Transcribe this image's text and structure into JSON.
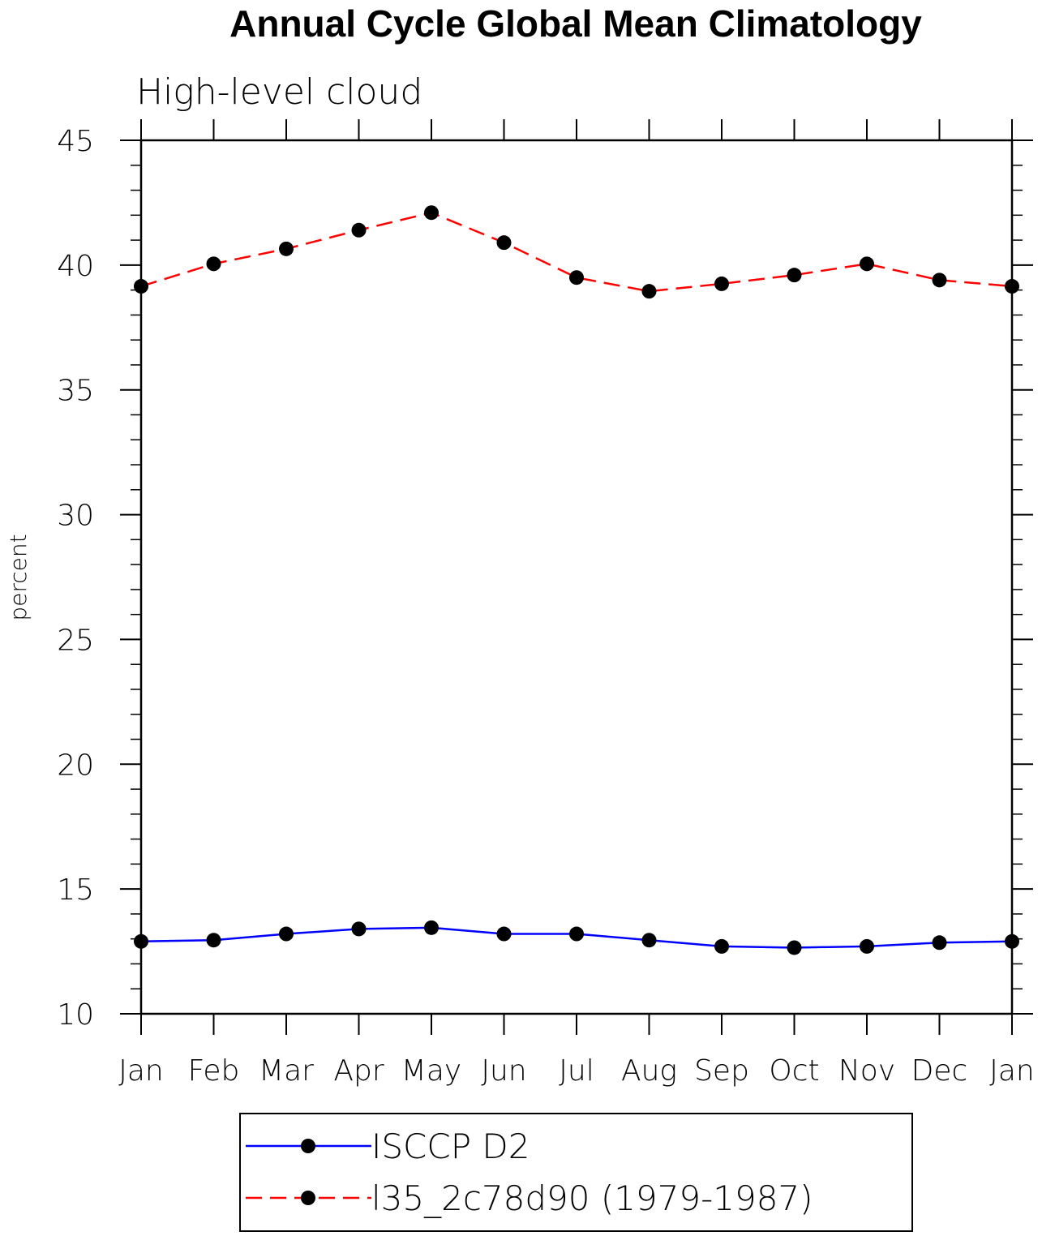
{
  "chart_data": {
    "type": "line",
    "title": "Annual Cycle Global Mean Climatology",
    "subtitle": "High-level cloud",
    "xlabel": "",
    "ylabel": "percent",
    "categories": [
      "Jan",
      "Feb",
      "Mar",
      "Apr",
      "May",
      "Jun",
      "Jul",
      "Aug",
      "Sep",
      "Oct",
      "Nov",
      "Dec",
      "Jan"
    ],
    "ylim": [
      10,
      45
    ],
    "yticks": [
      10,
      15,
      20,
      25,
      30,
      35,
      40,
      45
    ],
    "yticks_labels": [
      "10",
      "15",
      "20",
      "25",
      "30",
      "35",
      "40",
      "45"
    ],
    "grid": false,
    "legend_position": "bottom",
    "series": [
      {
        "name": "ISCCP D2",
        "color": "#0000ff",
        "line_style": "solid",
        "values": [
          12.9,
          12.95,
          13.2,
          13.4,
          13.45,
          13.2,
          13.2,
          12.95,
          12.7,
          12.65,
          12.7,
          12.85,
          12.9
        ]
      },
      {
        "name": "l35_2c78d90 (1979-1987)",
        "color": "#ff0000",
        "line_style": "dashed",
        "values": [
          39.15,
          40.05,
          40.65,
          41.4,
          42.1,
          40.9,
          39.5,
          38.95,
          39.25,
          39.6,
          40.05,
          39.4,
          39.15
        ]
      }
    ]
  }
}
